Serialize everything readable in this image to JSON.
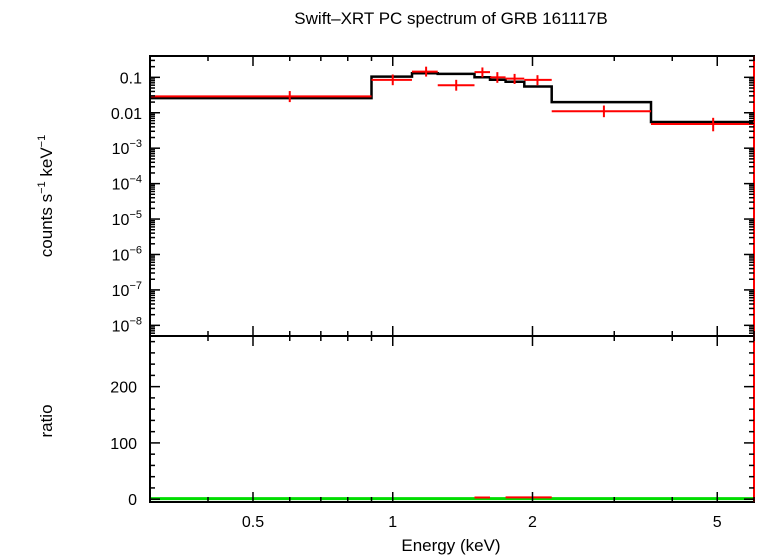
{
  "chart_data": [
    {
      "type": "line",
      "panel": "spectrum",
      "title": "Swift–XRT PC spectrum of GRB 161117B",
      "xlabel": "",
      "ylabel_parts": [
        "counts s",
        "−1",
        " keV",
        "−1"
      ],
      "xscale": "log",
      "yscale": "log",
      "xlim": [
        0.3,
        6.0
      ],
      "ylim": [
        5e-09,
        0.4
      ],
      "yticks": [
        {
          "v": 0.1,
          "label": "0.1"
        },
        {
          "v": 0.01,
          "label": "0.01"
        },
        {
          "v": 0.001,
          "base": "10",
          "exp": "−3"
        },
        {
          "v": 0.0001,
          "base": "10",
          "exp": "−4"
        },
        {
          "v": 1e-05,
          "base": "10",
          "exp": "−5"
        },
        {
          "v": 1e-06,
          "base": "10",
          "exp": "−6"
        },
        {
          "v": 1e-07,
          "base": "10",
          "exp": "−7"
        },
        {
          "v": 1e-08,
          "base": "10",
          "exp": "−8"
        }
      ],
      "model_color": "#000000",
      "data_color": "#ff0000",
      "model": [
        {
          "x0": 0.3,
          "x1": 0.9,
          "y": 0.026
        },
        {
          "x0": 0.9,
          "x1": 1.1,
          "y": 0.105
        },
        {
          "x0": 1.1,
          "x1": 1.25,
          "y": 0.13
        },
        {
          "x0": 1.25,
          "x1": 1.5,
          "y": 0.125
        },
        {
          "x0": 1.5,
          "x1": 1.62,
          "y": 0.1
        },
        {
          "x0": 1.62,
          "x1": 1.75,
          "y": 0.085
        },
        {
          "x0": 1.75,
          "x1": 1.92,
          "y": 0.075
        },
        {
          "x0": 1.92,
          "x1": 2.2,
          "y": 0.055
        },
        {
          "x0": 2.2,
          "x1": 3.6,
          "y": 0.02
        },
        {
          "x0": 3.6,
          "x1": 6.0,
          "y": 0.0055
        }
      ],
      "data": [
        {
          "x": 0.6,
          "xlo": 0.3,
          "xhi": 0.9,
          "y": 0.029,
          "ylo": 0.02,
          "yhi": 0.041
        },
        {
          "x": 1.0,
          "xlo": 0.9,
          "xhi": 1.1,
          "y": 0.085,
          "ylo": 0.06,
          "yhi": 0.12
        },
        {
          "x": 1.18,
          "xlo": 1.1,
          "xhi": 1.25,
          "y": 0.145,
          "ylo": 0.105,
          "yhi": 0.2
        },
        {
          "x": 1.37,
          "xlo": 1.25,
          "xhi": 1.5,
          "y": 0.06,
          "ylo": 0.042,
          "yhi": 0.085
        },
        {
          "x": 1.56,
          "xlo": 1.5,
          "xhi": 1.62,
          "y": 0.14,
          "ylo": 0.1,
          "yhi": 0.19
        },
        {
          "x": 1.68,
          "xlo": 1.62,
          "xhi": 1.75,
          "y": 0.1,
          "ylo": 0.07,
          "yhi": 0.14
        },
        {
          "x": 1.83,
          "xlo": 1.75,
          "xhi": 1.92,
          "y": 0.092,
          "ylo": 0.065,
          "yhi": 0.125
        },
        {
          "x": 2.05,
          "xlo": 1.92,
          "xhi": 2.2,
          "y": 0.085,
          "ylo": 0.06,
          "yhi": 0.115
        },
        {
          "x": 2.85,
          "xlo": 2.2,
          "xhi": 3.6,
          "y": 0.011,
          "ylo": 0.0075,
          "yhi": 0.016
        },
        {
          "x": 4.9,
          "xlo": 3.6,
          "xhi": 6.0,
          "y": 0.0048,
          "ylo": 0.003,
          "yhi": 0.0072
        }
      ]
    },
    {
      "type": "scatter",
      "panel": "ratio",
      "xlabel": "Energy (keV)",
      "ylabel": "ratio",
      "xscale": "log",
      "xlim": [
        0.3,
        6.0
      ],
      "ylim": [
        -5,
        290
      ],
      "xticks": [
        {
          "v": 0.5,
          "label": "0.5"
        },
        {
          "v": 1,
          "label": "1"
        },
        {
          "v": 2,
          "label": "2"
        },
        {
          "v": 5,
          "label": "5"
        }
      ],
      "yticks": [
        {
          "v": 0,
          "label": "0"
        },
        {
          "v": 100,
          "label": "100"
        },
        {
          "v": 200,
          "label": "200"
        }
      ],
      "reference_line": {
        "y": 1,
        "color": "#00dd00"
      },
      "data_color": "#ff0000",
      "data": [
        {
          "xlo": 1.5,
          "xhi": 1.62,
          "y": 1.3
        },
        {
          "xlo": 1.75,
          "xhi": 2.2,
          "y": 1.4
        }
      ]
    }
  ]
}
